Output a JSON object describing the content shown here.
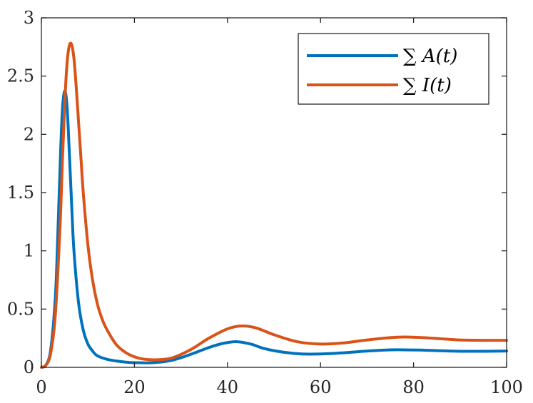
{
  "chart_data": {
    "type": "line",
    "title": "",
    "xlabel": "",
    "ylabel": "",
    "xlim": [
      0,
      100
    ],
    "ylim": [
      0,
      3
    ],
    "x_ticks": [
      0,
      20,
      40,
      60,
      80,
      100
    ],
    "y_ticks": [
      0,
      0.5,
      1,
      1.5,
      2,
      2.5,
      3
    ],
    "x_tick_labels": [
      "0",
      "20",
      "40",
      "60",
      "80",
      "100"
    ],
    "y_tick_labels": [
      "0",
      "0.5",
      "1",
      "1.5",
      "2",
      "2.5",
      "3"
    ],
    "grid": false,
    "legend_position": "top-right",
    "series": [
      {
        "name": "∑ A(t)",
        "color": "#0072BD",
        "x": [
          0,
          1,
          2,
          3,
          3.5,
          4,
          4.5,
          5,
          5.5,
          6,
          6.5,
          7,
          8,
          9,
          10,
          11,
          12,
          14,
          16,
          18,
          20,
          24,
          28,
          32,
          36,
          39,
          42,
          45,
          48,
          52,
          56,
          60,
          65,
          70,
          75,
          78,
          82,
          86,
          90,
          95,
          100
        ],
        "y": [
          0,
          0.02,
          0.15,
          0.6,
          1.1,
          1.7,
          2.2,
          2.37,
          2.25,
          1.85,
          1.4,
          1.0,
          0.55,
          0.32,
          0.2,
          0.14,
          0.1,
          0.07,
          0.055,
          0.045,
          0.04,
          0.04,
          0.06,
          0.11,
          0.17,
          0.205,
          0.22,
          0.2,
          0.16,
          0.13,
          0.115,
          0.115,
          0.125,
          0.14,
          0.15,
          0.15,
          0.148,
          0.142,
          0.138,
          0.138,
          0.14
        ]
      },
      {
        "name": "∑ I(t)",
        "color": "#D95319",
        "x": [
          0,
          1,
          2,
          3,
          4,
          4.5,
          5,
          5.5,
          6,
          6.5,
          7,
          7.5,
          8,
          8.5,
          9,
          10,
          11,
          12,
          13,
          14,
          16,
          18,
          20,
          22,
          25,
          28,
          32,
          36,
          40,
          43,
          46,
          50,
          55,
          60,
          65,
          70,
          75,
          78,
          82,
          86,
          90,
          95,
          100
        ],
        "y": [
          0,
          0.02,
          0.12,
          0.45,
          1.2,
          1.75,
          2.25,
          2.6,
          2.76,
          2.77,
          2.65,
          2.4,
          2.1,
          1.8,
          1.5,
          1.05,
          0.75,
          0.55,
          0.42,
          0.33,
          0.2,
          0.13,
          0.09,
          0.07,
          0.065,
          0.08,
          0.15,
          0.25,
          0.33,
          0.355,
          0.34,
          0.28,
          0.22,
          0.2,
          0.21,
          0.235,
          0.255,
          0.26,
          0.255,
          0.245,
          0.235,
          0.232,
          0.232
        ]
      }
    ]
  }
}
